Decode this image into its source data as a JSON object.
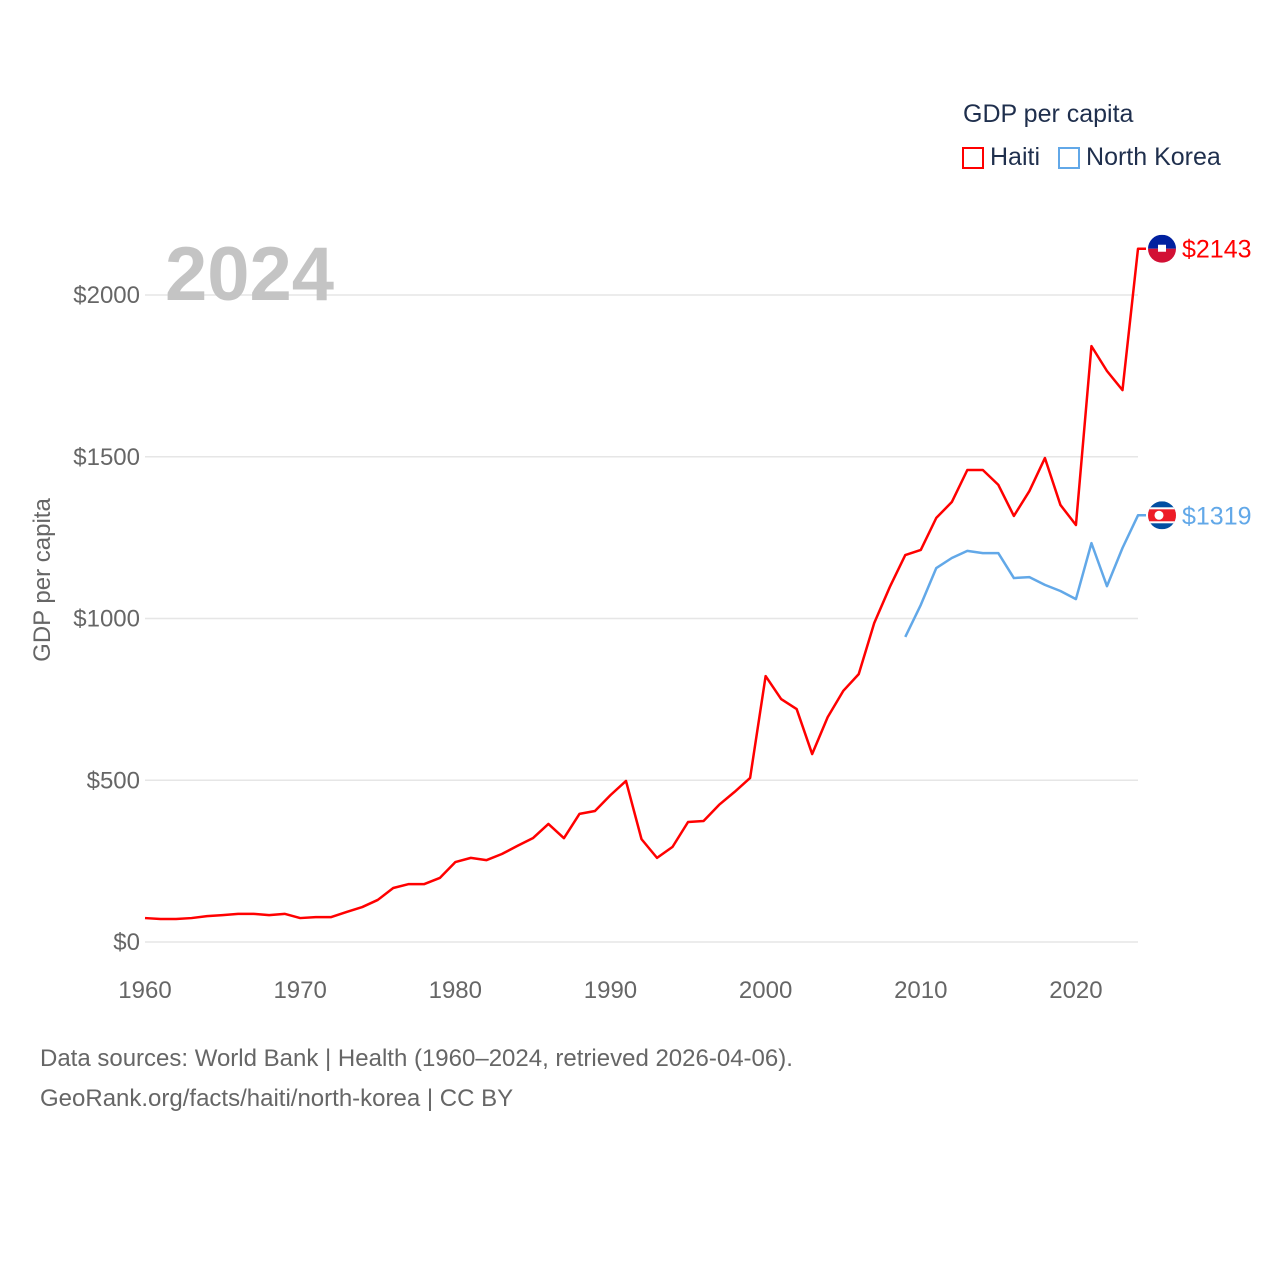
{
  "chart_data": {
    "type": "line",
    "title": "GDP per capita",
    "watermark_year": "2024",
    "ylabel": "GDP per capita",
    "xlabel": "",
    "xlim": [
      1960,
      2024
    ],
    "ylim": [
      0,
      2200
    ],
    "x_ticks": [
      "1960",
      "1970",
      "1980",
      "1990",
      "2000",
      "2010",
      "2020"
    ],
    "x_tick_values": [
      1960,
      1970,
      1980,
      1990,
      2000,
      2010,
      2020
    ],
    "y_ticks": [
      "$0",
      "$500",
      "$1000",
      "$1500",
      "$2000"
    ],
    "y_tick_values": [
      0,
      500,
      1000,
      1500,
      2000
    ],
    "grid": true,
    "legend_placement": "top-right",
    "series": [
      {
        "name": "Haiti",
        "color": "#ff0000",
        "end_label": "$2143",
        "start_year": 1960,
        "values": [
          74,
          71,
          71,
          74,
          80,
          83,
          87,
          87,
          83,
          87,
          74,
          77,
          77,
          93,
          108,
          130,
          167,
          179,
          179,
          198,
          247,
          260,
          253,
          272,
          297,
          321,
          365,
          321,
          396,
          405,
          454,
          498,
          318,
          260,
          294,
          371,
          374,
          424,
          464,
          507,
          822,
          751,
          720,
          581,
          695,
          776,
          828,
          986,
          1097,
          1196,
          1212,
          1311,
          1360,
          1459,
          1459,
          1413,
          1317,
          1394,
          1496,
          1351,
          1289,
          1842,
          1765,
          1706,
          2143
        ]
      },
      {
        "name": "North Korea",
        "color": "#62a8e8",
        "end_label": "$1319",
        "start_year": 2009,
        "values": [
          943,
          1042,
          1156,
          1187,
          1209,
          1202,
          1202,
          1125,
          1128,
          1104,
          1085,
          1060,
          1233,
          1100,
          1218,
          1319
        ]
      }
    ]
  },
  "footer": {
    "line1": "Data sources: World Bank | Health (1960–2024, retrieved 2026-04-06).",
    "line2": "GeoRank.org/facts/haiti/north-korea | CC BY"
  }
}
